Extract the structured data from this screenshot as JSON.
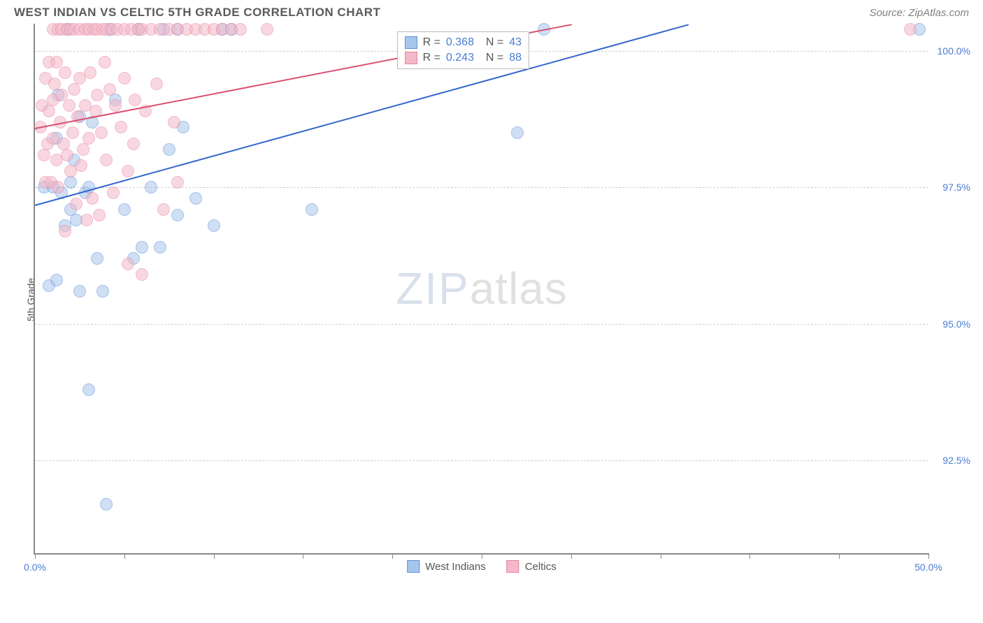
{
  "header": {
    "title": "WEST INDIAN VS CELTIC 5TH GRADE CORRELATION CHART",
    "source": "Source: ZipAtlas.com"
  },
  "watermark": {
    "part1": "ZIP",
    "part2": "atlas"
  },
  "chart": {
    "type": "scatter",
    "ylabel": "5th Grade",
    "background_color": "#ffffff",
    "grid_color": "#d0d0d0",
    "axis_color": "#888888",
    "tick_label_color": "#4a7bd0",
    "tick_fontsize": 14,
    "label_fontsize": 14,
    "xlim": [
      0,
      50
    ],
    "ylim": [
      90.8,
      100.5
    ],
    "xtick_positions": [
      0,
      5,
      10,
      15,
      20,
      25,
      30,
      35,
      40,
      45,
      50
    ],
    "xtick_labels": {
      "0": "0.0%",
      "50": "50.0%"
    },
    "ytick_positions": [
      92.5,
      95.0,
      97.5,
      100.0
    ],
    "ytick_labels": [
      "92.5%",
      "95.0%",
      "97.5%",
      "100.0%"
    ],
    "marker_radius": 9,
    "marker_opacity": 0.55,
    "series": [
      {
        "name": "West Indians",
        "color_fill": "#a8c6ec",
        "color_stroke": "#5f8fd8",
        "r_value": "0.368",
        "n_value": "43",
        "trendline": {
          "x1": 0,
          "y1": 97.2,
          "x2": 36.5,
          "y2": 100.5,
          "color": "#3366cc",
          "width": 2
        },
        "points": [
          [
            0.5,
            97.5
          ],
          [
            0.8,
            95.7
          ],
          [
            1.0,
            97.5
          ],
          [
            1.2,
            98.4
          ],
          [
            1.2,
            95.8
          ],
          [
            1.3,
            99.2
          ],
          [
            1.5,
            97.4
          ],
          [
            1.7,
            96.8
          ],
          [
            1.8,
            100.4
          ],
          [
            2.0,
            97.6
          ],
          [
            2.0,
            97.1
          ],
          [
            2.2,
            98.0
          ],
          [
            2.3,
            96.9
          ],
          [
            2.5,
            98.8
          ],
          [
            2.5,
            95.6
          ],
          [
            2.8,
            97.4
          ],
          [
            3.0,
            97.5
          ],
          [
            3.2,
            98.7
          ],
          [
            3.0,
            93.8
          ],
          [
            3.5,
            96.2
          ],
          [
            3.8,
            95.6
          ],
          [
            4.0,
            91.7
          ],
          [
            4.2,
            100.4
          ],
          [
            4.5,
            99.1
          ],
          [
            5.0,
            97.1
          ],
          [
            5.5,
            96.2
          ],
          [
            5.8,
            100.4
          ],
          [
            6.0,
            96.4
          ],
          [
            6.5,
            97.5
          ],
          [
            7.0,
            96.4
          ],
          [
            7.2,
            100.4
          ],
          [
            7.5,
            98.2
          ],
          [
            8.0,
            97.0
          ],
          [
            8.0,
            100.4
          ],
          [
            8.3,
            98.6
          ],
          [
            9.0,
            97.3
          ],
          [
            10.0,
            96.8
          ],
          [
            10.5,
            100.4
          ],
          [
            11.0,
            100.4
          ],
          [
            15.5,
            97.1
          ],
          [
            27.0,
            98.5
          ],
          [
            28.5,
            100.4
          ],
          [
            49.5,
            100.4
          ]
        ]
      },
      {
        "name": "Celtics",
        "color_fill": "#f4b8c8",
        "color_stroke": "#e8839f",
        "r_value": "0.243",
        "n_value": "88",
        "trendline": {
          "x1": 0,
          "y1": 98.6,
          "x2": 30.0,
          "y2": 100.5,
          "color": "#d94f70",
          "width": 2
        },
        "points": [
          [
            0.3,
            98.6
          ],
          [
            0.4,
            99.0
          ],
          [
            0.5,
            98.1
          ],
          [
            0.6,
            99.5
          ],
          [
            0.6,
            97.6
          ],
          [
            0.7,
            98.3
          ],
          [
            0.8,
            99.8
          ],
          [
            0.8,
            98.9
          ],
          [
            0.9,
            97.6
          ],
          [
            1.0,
            99.1
          ],
          [
            1.0,
            100.4
          ],
          [
            1.0,
            98.4
          ],
          [
            1.1,
            99.4
          ],
          [
            1.2,
            98.0
          ],
          [
            1.2,
            99.8
          ],
          [
            1.3,
            100.4
          ],
          [
            1.3,
            97.5
          ],
          [
            1.4,
            98.7
          ],
          [
            1.5,
            99.2
          ],
          [
            1.5,
            100.4
          ],
          [
            1.6,
            98.3
          ],
          [
            1.7,
            99.6
          ],
          [
            1.7,
            96.7
          ],
          [
            1.8,
            100.4
          ],
          [
            1.8,
            98.1
          ],
          [
            1.9,
            99.0
          ],
          [
            2.0,
            100.4
          ],
          [
            2.0,
            97.8
          ],
          [
            2.1,
            98.5
          ],
          [
            2.2,
            99.3
          ],
          [
            2.2,
            100.4
          ],
          [
            2.3,
            97.2
          ],
          [
            2.4,
            98.8
          ],
          [
            2.5,
            100.4
          ],
          [
            2.5,
            99.5
          ],
          [
            2.6,
            97.9
          ],
          [
            2.7,
            98.2
          ],
          [
            2.8,
            100.4
          ],
          [
            2.8,
            99.0
          ],
          [
            2.9,
            96.9
          ],
          [
            3.0,
            100.4
          ],
          [
            3.0,
            98.4
          ],
          [
            3.1,
            99.6
          ],
          [
            3.2,
            97.3
          ],
          [
            3.3,
            100.4
          ],
          [
            3.4,
            98.9
          ],
          [
            3.5,
            100.4
          ],
          [
            3.5,
            99.2
          ],
          [
            3.6,
            97.0
          ],
          [
            3.7,
            98.5
          ],
          [
            3.8,
            100.4
          ],
          [
            3.9,
            99.8
          ],
          [
            4.0,
            100.4
          ],
          [
            4.0,
            98.0
          ],
          [
            4.2,
            99.3
          ],
          [
            4.3,
            100.4
          ],
          [
            4.4,
            97.4
          ],
          [
            4.5,
            99.0
          ],
          [
            4.6,
            100.4
          ],
          [
            4.8,
            98.6
          ],
          [
            5.0,
            100.4
          ],
          [
            5.0,
            99.5
          ],
          [
            5.2,
            97.8
          ],
          [
            5.2,
            96.1
          ],
          [
            5.4,
            100.4
          ],
          [
            5.5,
            98.3
          ],
          [
            5.6,
            99.1
          ],
          [
            5.8,
            100.4
          ],
          [
            6.0,
            100.4
          ],
          [
            6.0,
            95.9
          ],
          [
            6.2,
            98.9
          ],
          [
            6.5,
            100.4
          ],
          [
            6.8,
            99.4
          ],
          [
            7.0,
            100.4
          ],
          [
            7.2,
            97.1
          ],
          [
            7.5,
            100.4
          ],
          [
            7.8,
            98.7
          ],
          [
            8.0,
            100.4
          ],
          [
            8.0,
            97.6
          ],
          [
            8.5,
            100.4
          ],
          [
            9.0,
            100.4
          ],
          [
            9.5,
            100.4
          ],
          [
            10.0,
            100.4
          ],
          [
            10.5,
            100.4
          ],
          [
            11.0,
            100.4
          ],
          [
            11.5,
            100.4
          ],
          [
            13.0,
            100.4
          ],
          [
            49.0,
            100.4
          ]
        ]
      }
    ],
    "bottom_legend": [
      {
        "label": "West Indians",
        "fill": "#a8c6ec",
        "stroke": "#5f8fd8"
      },
      {
        "label": "Celtics",
        "fill": "#f4b8c8",
        "stroke": "#e8839f"
      }
    ],
    "stats_legend": {
      "left_pct": 40.5,
      "top_pct": 1.5
    }
  }
}
